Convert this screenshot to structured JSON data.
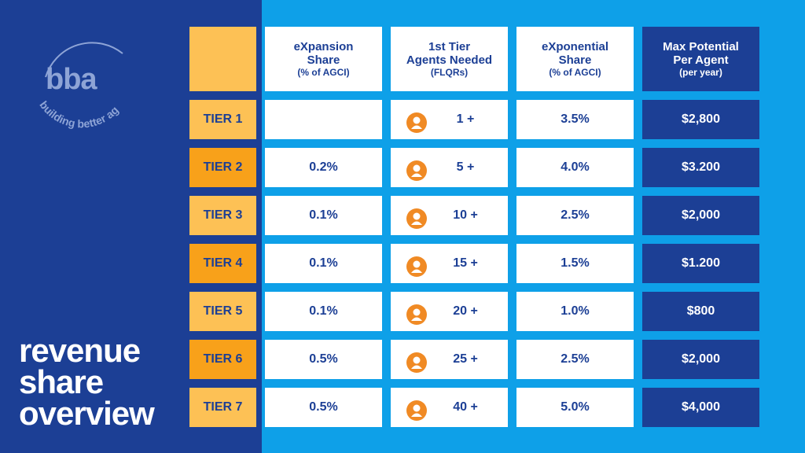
{
  "brand": {
    "logo_text": "bba",
    "tagline": "building better agents."
  },
  "title": {
    "line1": "revenue",
    "line2": "share",
    "line3": "overview"
  },
  "headers": {
    "expansion": {
      "main1": "eXpansion",
      "main2": "Share",
      "sub": "(% of AGCI)"
    },
    "agents": {
      "main1": "1st Tier",
      "main2": "Agents Needed",
      "sub": "(FLQRs)"
    },
    "exponential": {
      "main1": "eXponential",
      "main2": "Share",
      "sub": "(% of AGCI)"
    },
    "max": {
      "main1": "Max Potential",
      "main2": "Per Agent",
      "sub": "(per year)"
    }
  },
  "rows": [
    {
      "tier": "TIER 1",
      "expansion": "",
      "agents": "1 +",
      "exponential": "3.5%",
      "max": "$2,800"
    },
    {
      "tier": "TIER 2",
      "expansion": "0.2%",
      "agents": "5 +",
      "exponential": "4.0%",
      "max": "$3.200"
    },
    {
      "tier": "TIER 3",
      "expansion": "0.1%",
      "agents": "10 +",
      "exponential": "2.5%",
      "max": "$2,000"
    },
    {
      "tier": "TIER 4",
      "expansion": "0.1%",
      "agents": "15 +",
      "exponential": "1.5%",
      "max": "$1.200"
    },
    {
      "tier": "TIER 5",
      "expansion": "0.1%",
      "agents": "20 +",
      "exponential": "1.0%",
      "max": "$800"
    },
    {
      "tier": "TIER 6",
      "expansion": "0.5%",
      "agents": "25 +",
      "exponential": "2.5%",
      "max": "$2,000"
    },
    {
      "tier": "TIER 7",
      "expansion": "0.5%",
      "agents": "40 +",
      "exponential": "5.0%",
      "max": "$4,000"
    }
  ],
  "colors": {
    "navy": "#1c3f95",
    "sky": "#0ea0e8",
    "tier_light": "#fdc155",
    "tier_dark": "#f8a11a",
    "agent_icon": "#f08a24"
  }
}
